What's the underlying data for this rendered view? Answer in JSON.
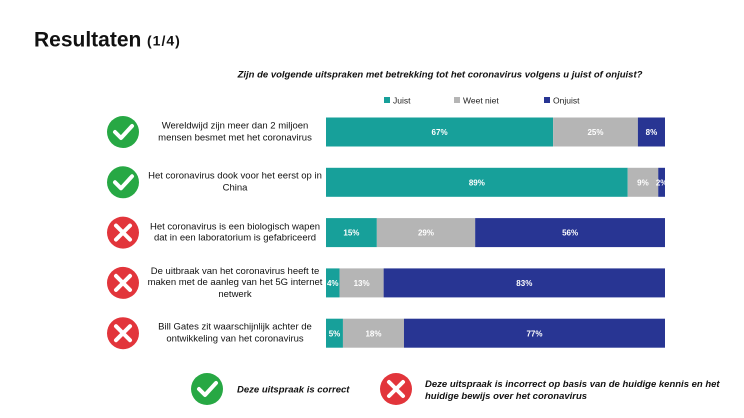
{
  "header": {
    "title": "Resultaten",
    "page": "(1/4)"
  },
  "chart_data": {
    "type": "stacked-bar-horizontal",
    "title": "Zijn de volgende uitspraken met betrekking tot het coronavirus volgens u juist of onjuist?",
    "categories": [
      "Wereldwijd zijn meer dan 2 miljoen mensen besmet met het coronavirus",
      "Het coronavirus dook voor het eerst op in China",
      "Het coronavirus is een biologisch wapen dat in een laboratorium is gefabriceerd",
      "De uitbraak van het coronavirus heeft te maken met de aanleg van het 5G internet netwerk",
      "Bill Gates zit waarschijnlijk achter de ontwikkeling van het coronavirus"
    ],
    "correct": [
      true,
      true,
      false,
      false,
      false
    ],
    "xlim": [
      0,
      100
    ],
    "series": [
      {
        "name": "Juist",
        "color": "#17a09a",
        "values": [
          67,
          89,
          15,
          4,
          5
        ],
        "value_labels": [
          "67%",
          "89%",
          "15%",
          "4%",
          "5%"
        ]
      },
      {
        "name": "Weet niet",
        "color": "#b5b5b5",
        "values": [
          25,
          9,
          29,
          13,
          18
        ],
        "value_labels": [
          "25%",
          "9%",
          "29%",
          "13%",
          "18%"
        ]
      },
      {
        "name": "Onjuist",
        "color": "#283593",
        "values": [
          8,
          2,
          56,
          83,
          77
        ],
        "value_labels": [
          "8%",
          "2%",
          "56%",
          "83%",
          "77%"
        ]
      }
    ],
    "legend": "top"
  },
  "footer": {
    "correct_note": "Deze uitspraak is correct",
    "incorrect_note": "Deze uitspraak is incorrect op basis van de huidige kennis en het huidige bewijs over het coronavirus"
  }
}
